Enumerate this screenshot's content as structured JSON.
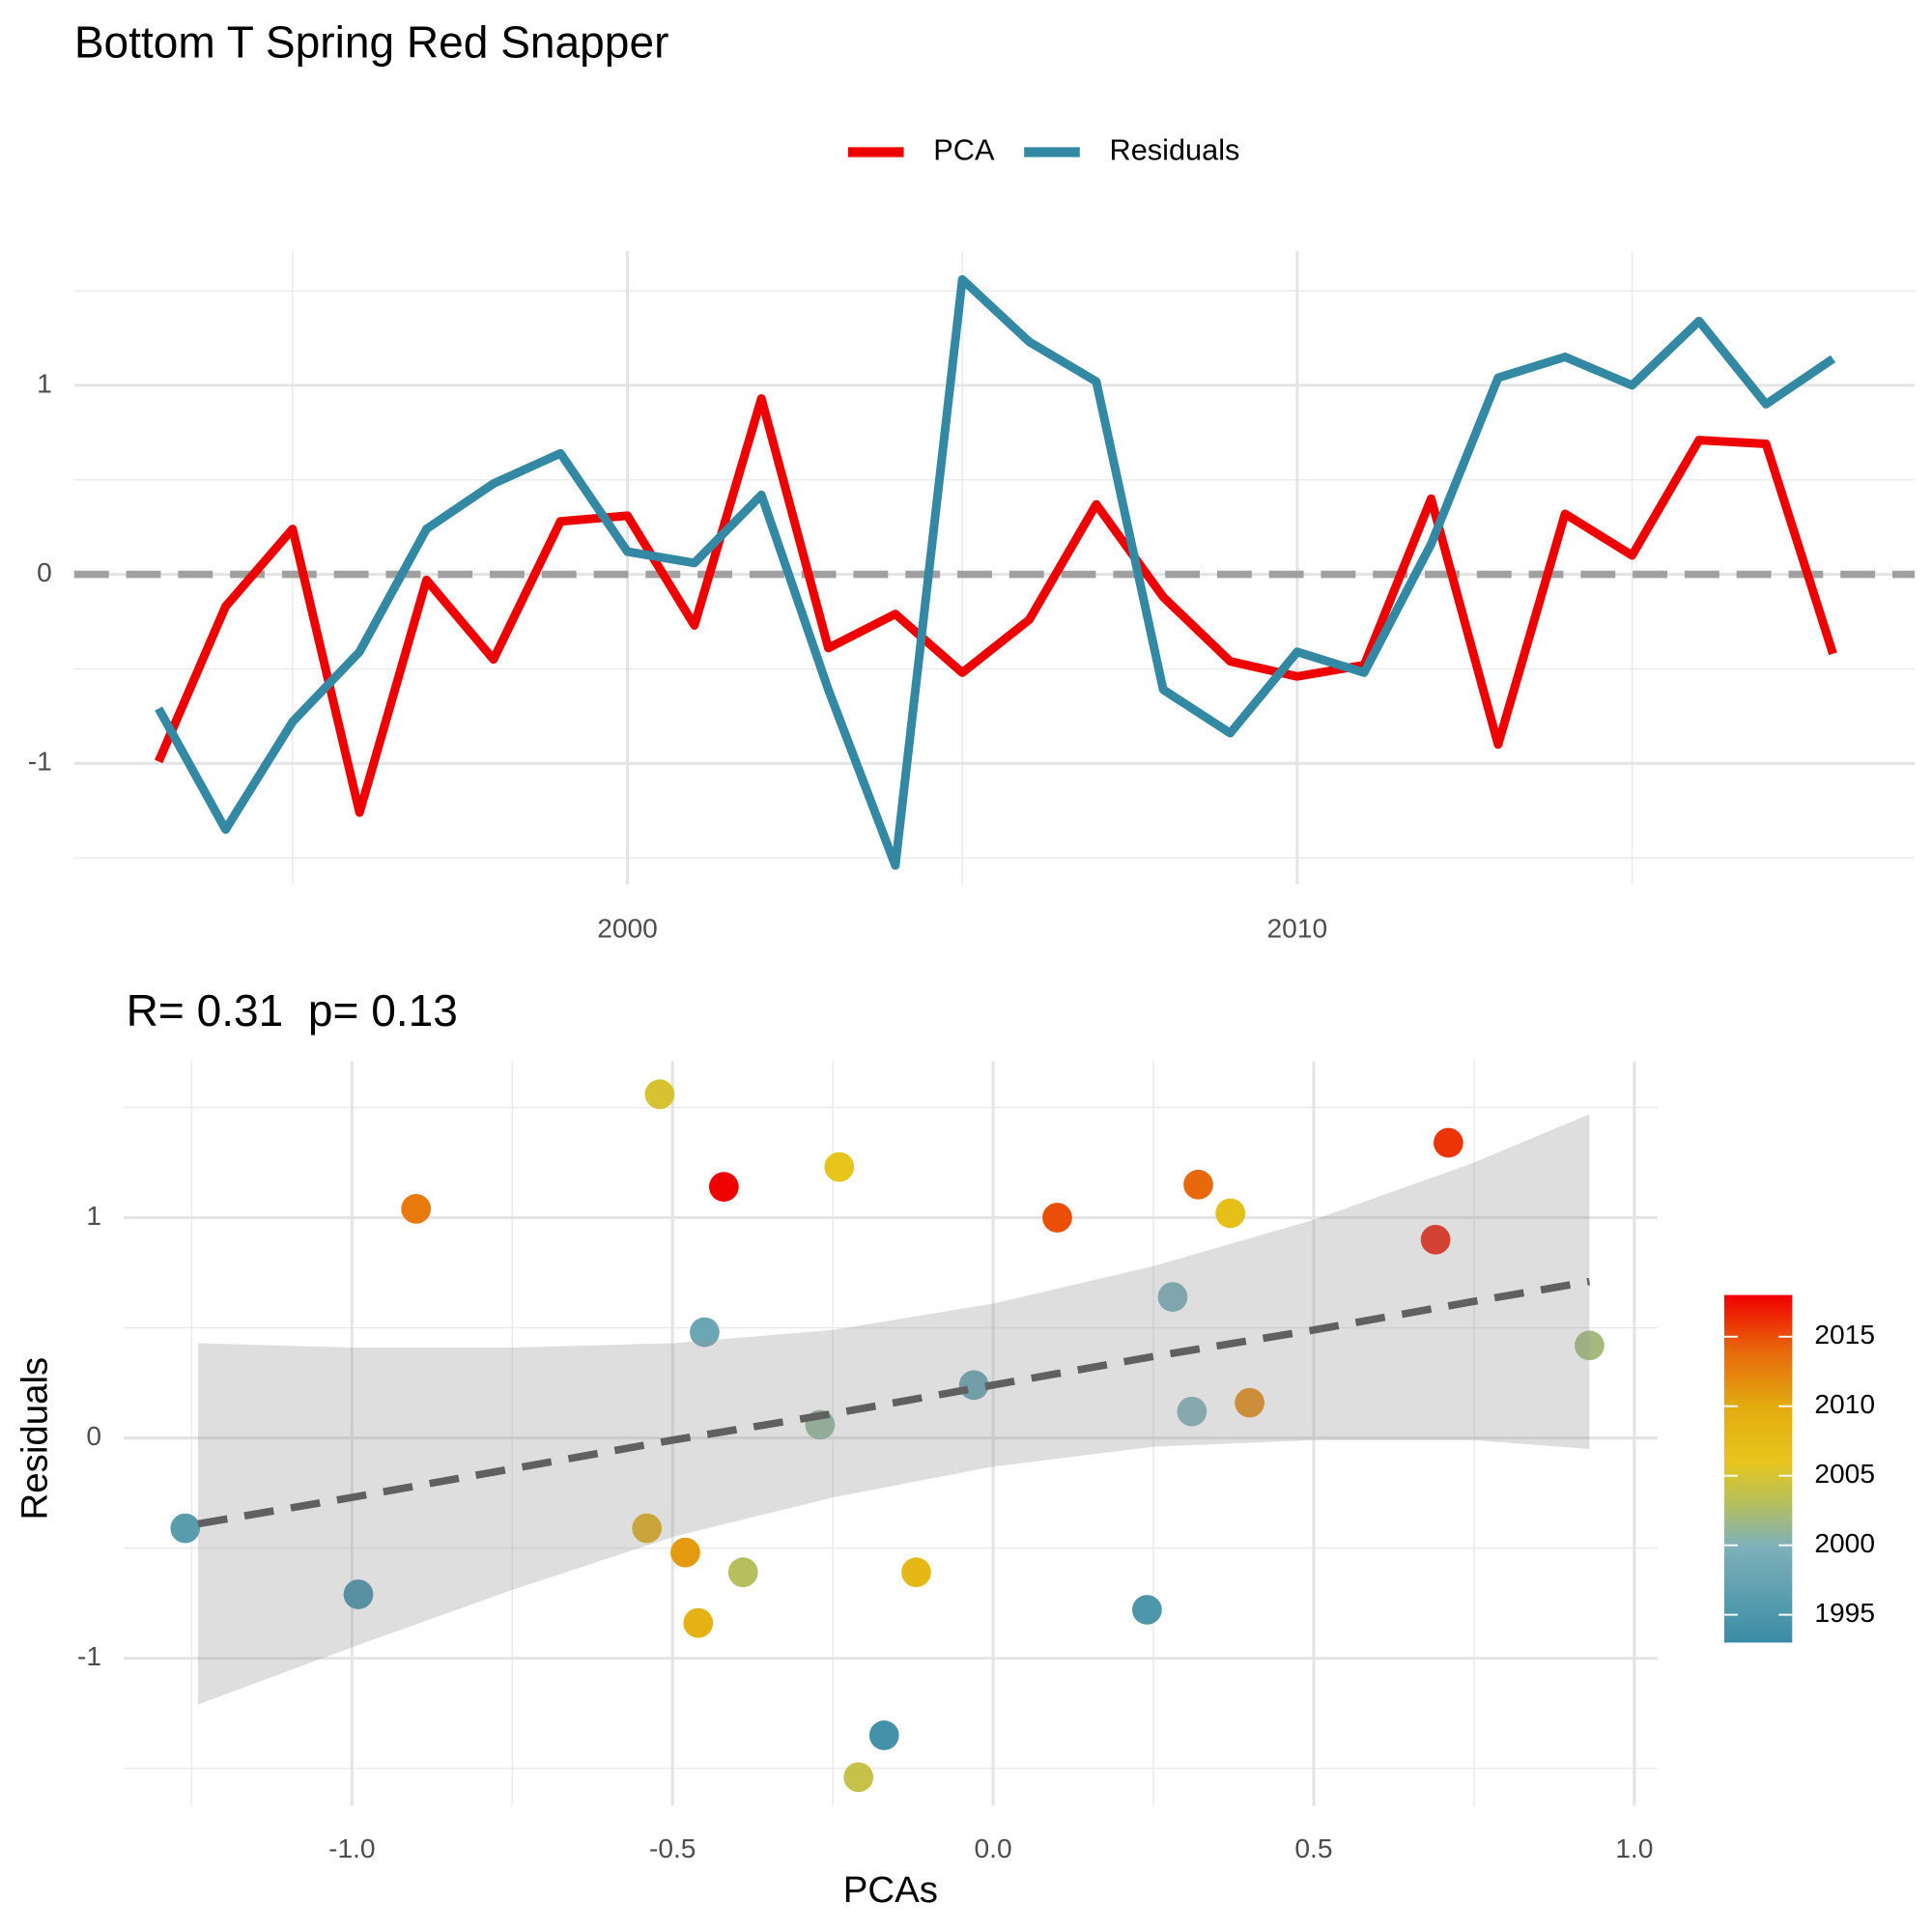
{
  "chart_data": [
    {
      "type": "line",
      "title": "Bottom T Spring Red Snapper",
      "legend": "top",
      "x": [
        1993,
        1994,
        1995,
        1996,
        1997,
        1998,
        1999,
        2000,
        2001,
        2002,
        2003,
        2004,
        2005,
        2006,
        2007,
        2008,
        2009,
        2010,
        2011,
        2012,
        2013,
        2014,
        2015,
        2016,
        2017,
        2018
      ],
      "series": [
        {
          "name": "PCA",
          "color": "#ee0000",
          "values": [
            -0.99,
            -0.17,
            0.24,
            -1.26,
            -0.03,
            -0.45,
            0.28,
            0.31,
            -0.27,
            0.93,
            -0.39,
            -0.21,
            -0.52,
            -0.24,
            0.37,
            -0.12,
            -0.46,
            -0.54,
            -0.48,
            0.4,
            -0.9,
            0.32,
            0.1,
            0.71,
            0.69,
            -0.42
          ]
        },
        {
          "name": "Residuals",
          "color": "#3388a4",
          "values": [
            -0.71,
            -1.35,
            -0.78,
            -0.41,
            0.24,
            0.48,
            0.64,
            0.12,
            0.06,
            0.42,
            -0.61,
            -1.54,
            1.56,
            1.23,
            1.02,
            -0.61,
            -0.84,
            -0.41,
            -0.52,
            0.16,
            1.04,
            1.15,
            1.0,
            1.34,
            0.9,
            1.14
          ]
        }
      ],
      "xlim": [
        1991.74,
        2019.22
      ],
      "xticks": [
        2000,
        2010
      ],
      "minor_xticks": [
        1995,
        2005,
        2015
      ],
      "ylim": [
        -1.64,
        1.71
      ],
      "yticks": [
        -1,
        0,
        1
      ],
      "minor_yticks": [
        -1.5,
        -0.5,
        0.5,
        1.5
      ],
      "grid": true,
      "hline": 0,
      "hline_color": "#a0a0a0"
    },
    {
      "type": "scatter",
      "title": "R= 0.31  p= 0.13",
      "x_label": "PCAs",
      "y_label": "Residuals",
      "x": [
        -0.99,
        -0.17,
        0.24,
        -1.26,
        -0.03,
        -0.45,
        0.28,
        0.31,
        -0.27,
        0.93,
        -0.39,
        -0.21,
        -0.52,
        -0.24,
        0.37,
        -0.12,
        -0.46,
        -0.54,
        -0.48,
        0.4,
        -0.9,
        0.32,
        0.1,
        0.71,
        0.69,
        -0.42
      ],
      "y": [
        -0.71,
        -1.35,
        -0.78,
        -0.41,
        0.24,
        0.48,
        0.64,
        0.12,
        0.06,
        0.42,
        -0.61,
        -1.54,
        1.56,
        1.23,
        1.02,
        -0.61,
        -0.84,
        -0.41,
        -0.52,
        0.16,
        1.04,
        1.15,
        1.0,
        1.34,
        0.9,
        1.14
      ],
      "color_values": [
        1993,
        1994,
        1995,
        1996,
        1997,
        1998,
        1999,
        2000,
        2001,
        2002,
        2003,
        2004,
        2005,
        2006,
        2007,
        2008,
        2009,
        2010,
        2011,
        2012,
        2013,
        2014,
        2015,
        2016,
        2017,
        2018
      ],
      "colorbar": {
        "lim": [
          1993,
          2018
        ],
        "ticks": [
          1995,
          2000,
          2005,
          2010,
          2015
        ],
        "stops": [
          1993,
          2000,
          2003,
          2006,
          2010,
          2014,
          2018
        ],
        "colors": [
          "#3a8ca6",
          "#7fb1b9",
          "#b5bf5e",
          "#e8c51c",
          "#e2ab0e",
          "#e8680c",
          "#f00000"
        ]
      },
      "fit": {
        "x": [
          -1.24,
          -1.0,
          -0.75,
          -0.5,
          -0.25,
          0,
          0.25,
          0.5,
          0.75,
          0.93
        ],
        "y": [
          -0.39,
          -0.27,
          -0.14,
          -0.01,
          0.11,
          0.24,
          0.37,
          0.49,
          0.62,
          0.71
        ],
        "lower": [
          -1.21,
          -0.95,
          -0.69,
          -0.45,
          -0.27,
          -0.13,
          -0.04,
          -0.01,
          -0.01,
          -0.05
        ],
        "upper": [
          0.43,
          0.41,
          0.41,
          0.43,
          0.49,
          0.61,
          0.78,
          0.99,
          1.25,
          1.47
        ],
        "color": "#606060",
        "band_color": "#999999"
      },
      "xlim": [
        -1.356,
        1.036
      ],
      "xticks": [
        {
          "value": -1,
          "label": "-1.0"
        },
        -0.5,
        {
          "value": 0,
          "label": "0.0"
        },
        0.5,
        {
          "value": 1,
          "label": "1.0"
        }
      ],
      "minor_xticks": [
        -1.25,
        -0.75,
        -0.25,
        0.25,
        0.75
      ],
      "ylim": [
        -1.67,
        1.71
      ],
      "yticks": [
        -1,
        0,
        1
      ],
      "minor_yticks": [
        -1.5,
        -0.5,
        0.5,
        1.5
      ],
      "grid": true
    }
  ]
}
